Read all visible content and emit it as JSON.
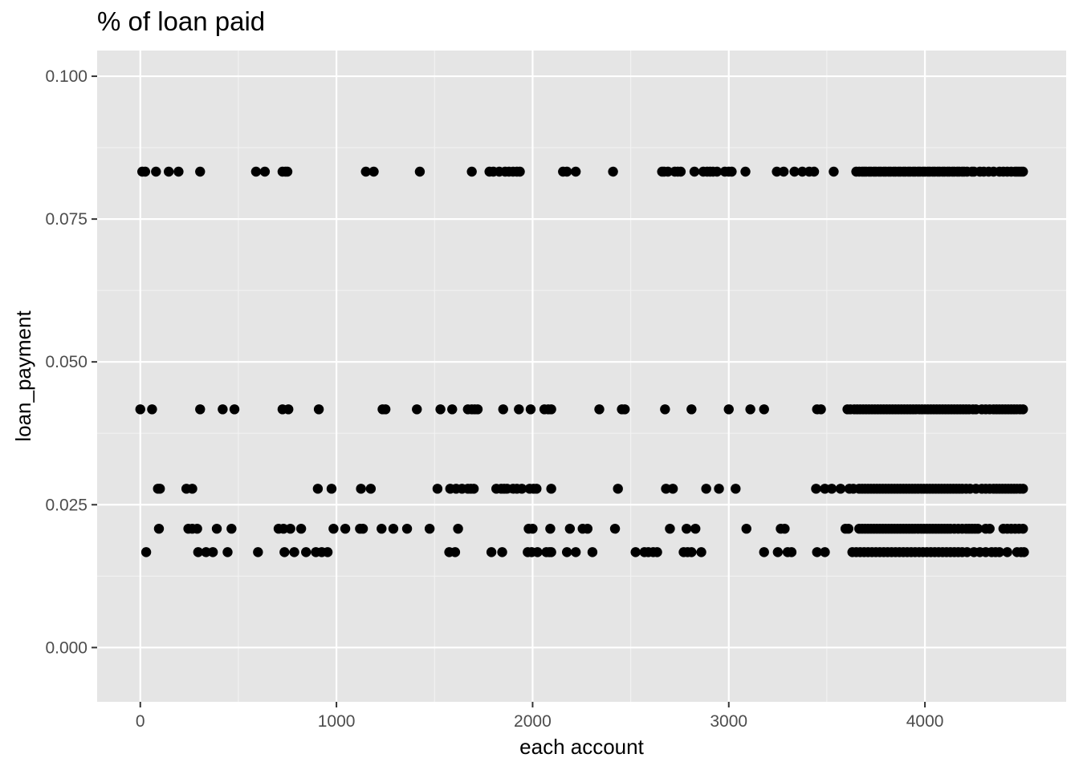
{
  "chart_data": {
    "type": "scatter",
    "title": "% of loan paid",
    "xlabel": "each account",
    "ylabel": "loan_payment",
    "xlim": [
      -220,
      4720
    ],
    "ylim": [
      -0.0095,
      0.1045
    ],
    "x_ticks": [
      0,
      1000,
      2000,
      3000,
      4000
    ],
    "x_tick_labels": [
      "0",
      "1000",
      "2000",
      "3000",
      "4000"
    ],
    "y_ticks": [
      0.0,
      0.025,
      0.05,
      0.075,
      0.1
    ],
    "y_tick_labels": [
      "0.000",
      "0.025",
      "0.050",
      "0.075",
      "0.100"
    ],
    "grid": true,
    "background": "#e5e5e5",
    "point_color": "#000000",
    "levels": [
      0.0833,
      0.0417,
      0.0278,
      0.0208,
      0.0167
    ],
    "series": [
      {
        "y": 0.0833,
        "x": [
          10,
          25,
          80,
          145,
          195,
          305,
          590,
          635,
          725,
          740,
          750,
          1150,
          1190,
          1425,
          1690,
          1780,
          1800,
          1830,
          1860,
          1880,
          1900,
          1920,
          1935,
          2155,
          2175,
          2220,
          2410,
          2660,
          2670,
          2690,
          2725,
          2740,
          2755,
          2825,
          2870,
          2890,
          2905,
          2920,
          2940,
          2980,
          3000,
          3015,
          3085,
          3245,
          3280,
          3335,
          3375,
          3410,
          3435,
          3535,
          3650,
          3665,
          3680,
          3690,
          3700,
          3715,
          3725,
          3740,
          3750,
          3765,
          3775,
          3790,
          3800,
          3815,
          3825,
          3840,
          3850,
          3865,
          3875,
          3890,
          3900,
          3915,
          3925,
          3940,
          3950,
          3965,
          3975,
          3990,
          4000,
          4015,
          4025,
          4040,
          4050,
          4065,
          4075,
          4090,
          4100,
          4115,
          4125,
          4140,
          4150,
          4165,
          4175,
          4190,
          4200,
          4215,
          4240,
          4250,
          4280,
          4300,
          4325,
          4350,
          4380,
          4400,
          4420,
          4440,
          4460,
          4470,
          4480,
          4490,
          4500
        ]
      },
      {
        "y": 0.0417,
        "x": [
          0,
          60,
          305,
          420,
          480,
          725,
          755,
          910,
          1235,
          1250,
          1410,
          1530,
          1590,
          1670,
          1690,
          1705,
          1720,
          1850,
          1930,
          1990,
          2060,
          2080,
          2095,
          2340,
          2455,
          2470,
          2675,
          2810,
          3000,
          3110,
          3180,
          3450,
          3470,
          3605,
          3620,
          3640,
          3655,
          3670,
          3685,
          3700,
          3715,
          3730,
          3745,
          3760,
          3775,
          3790,
          3805,
          3820,
          3835,
          3850,
          3865,
          3880,
          3895,
          3910,
          3925,
          3940,
          3955,
          3970,
          3985,
          4000,
          4015,
          4030,
          4045,
          4060,
          4075,
          4090,
          4105,
          4120,
          4135,
          4150,
          4165,
          4180,
          4195,
          4210,
          4225,
          4245,
          4260,
          4290,
          4310,
          4330,
          4350,
          4365,
          4380,
          4395,
          4410,
          4425,
          4440,
          4455,
          4470,
          4485,
          4500
        ]
      },
      {
        "y": 0.0278,
        "x": [
          90,
          100,
          235,
          265,
          905,
          975,
          1125,
          1175,
          1515,
          1580,
          1610,
          1640,
          1670,
          1685,
          1700,
          1815,
          1840,
          1855,
          1870,
          1900,
          1920,
          1945,
          1985,
          2005,
          2020,
          2095,
          2435,
          2680,
          2715,
          2885,
          2950,
          3035,
          3445,
          3490,
          3525,
          3570,
          3615,
          3635,
          3665,
          3680,
          3695,
          3710,
          3725,
          3740,
          3755,
          3770,
          3785,
          3800,
          3815,
          3830,
          3845,
          3860,
          3875,
          3890,
          3905,
          3920,
          3935,
          3950,
          3965,
          3980,
          3995,
          4010,
          4025,
          4040,
          4055,
          4070,
          4085,
          4100,
          4115,
          4130,
          4145,
          4160,
          4175,
          4190,
          4210,
          4230,
          4260,
          4290,
          4310,
          4330,
          4350,
          4365,
          4380,
          4395,
          4410,
          4425,
          4440,
          4455,
          4470,
          4485,
          4500
        ]
      },
      {
        "y": 0.0208,
        "x": [
          95,
          245,
          265,
          290,
          390,
          465,
          705,
          730,
          765,
          820,
          985,
          1045,
          1120,
          1135,
          1230,
          1290,
          1360,
          1475,
          1620,
          1980,
          2000,
          2090,
          2190,
          2255,
          2280,
          2420,
          2700,
          2785,
          2830,
          3090,
          3265,
          3285,
          3595,
          3610,
          3665,
          3680,
          3695,
          3710,
          3725,
          3740,
          3755,
          3770,
          3785,
          3800,
          3815,
          3830,
          3845,
          3860,
          3875,
          3890,
          3905,
          3920,
          3935,
          3950,
          3965,
          3980,
          3995,
          4010,
          4025,
          4040,
          4055,
          4070,
          4085,
          4100,
          4115,
          4130,
          4150,
          4170,
          4190,
          4210,
          4225,
          4240,
          4255,
          4270,
          4310,
          4330,
          4400,
          4420,
          4440,
          4460,
          4480,
          4500
        ]
      },
      {
        "y": 0.0167,
        "x": [
          30,
          295,
          335,
          370,
          445,
          600,
          735,
          785,
          845,
          895,
          925,
          955,
          1575,
          1605,
          1790,
          1845,
          1975,
          1995,
          2025,
          2070,
          2085,
          2095,
          2175,
          2220,
          2305,
          2525,
          2570,
          2590,
          2615,
          2635,
          2770,
          2790,
          2810,
          2860,
          3180,
          3250,
          3300,
          3320,
          3450,
          3490,
          3630,
          3650,
          3670,
          3690,
          3710,
          3730,
          3750,
          3770,
          3790,
          3810,
          3830,
          3850,
          3870,
          3890,
          3910,
          3930,
          3950,
          3970,
          3990,
          4010,
          4030,
          4050,
          4070,
          4090,
          4110,
          4130,
          4150,
          4170,
          4190,
          4215,
          4250,
          4280,
          4310,
          4340,
          4360,
          4380,
          4420,
          4470,
          4490,
          4505
        ]
      }
    ]
  }
}
